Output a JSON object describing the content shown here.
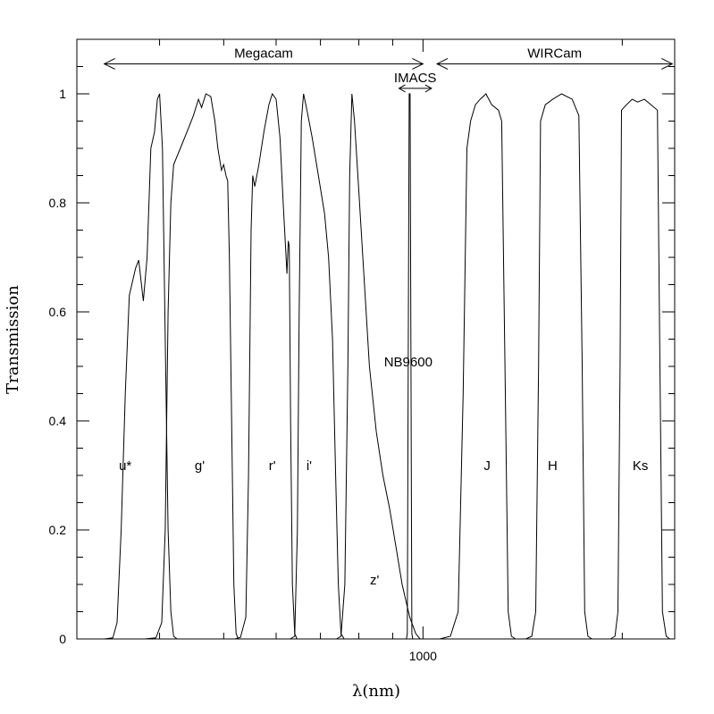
{
  "chart_data": {
    "type": "line",
    "xlabel": "λ(nm)",
    "ylabel": "Transmission",
    "xscale": "log",
    "xlim": [
      300,
      2400
    ],
    "ylim": [
      0,
      1.1
    ],
    "xticks": [
      {
        "value": 1000,
        "label": "1000"
      }
    ],
    "yticks": [
      {
        "value": 0,
        "label": "0"
      },
      {
        "value": 0.2,
        "label": "0.2"
      },
      {
        "value": 0.4,
        "label": "0.4"
      },
      {
        "value": 0.6,
        "label": "0.6"
      },
      {
        "value": 0.8,
        "label": "0.8"
      },
      {
        "value": 1,
        "label": "1"
      }
    ],
    "grid": false,
    "instruments": [
      {
        "name": "Megacam",
        "x_range": [
          330,
          1000
        ],
        "y": 1.055
      },
      {
        "name": "IMACS",
        "x_range": [
          920,
          1030
        ],
        "y": 1.01
      },
      {
        "name": "WIRCam",
        "x_range": [
          1050,
          2380
        ],
        "y": 1.055
      }
    ],
    "series": [
      {
        "name": "u*",
        "label_at": [
          355,
          0.31
        ],
        "points": [
          [
            330,
            0
          ],
          [
            340,
            0.002
          ],
          [
            345,
            0.03
          ],
          [
            350,
            0.2
          ],
          [
            355,
            0.45
          ],
          [
            360,
            0.63
          ],
          [
            368,
            0.68
          ],
          [
            372,
            0.695
          ],
          [
            378,
            0.62
          ],
          [
            383,
            0.7
          ],
          [
            388,
            0.9
          ],
          [
            393,
            0.93
          ],
          [
            397,
            0.99
          ],
          [
            400,
            1.0
          ],
          [
            404,
            0.9
          ],
          [
            408,
            0.55
          ],
          [
            412,
            0.2
          ],
          [
            416,
            0.05
          ],
          [
            420,
            0.005
          ],
          [
            425,
            0
          ]
        ]
      },
      {
        "name": "g'",
        "label_at": [
          460,
          0.31
        ],
        "points": [
          [
            380,
            0
          ],
          [
            395,
            0.002
          ],
          [
            403,
            0.03
          ],
          [
            408,
            0.2
          ],
          [
            412,
            0.6
          ],
          [
            416,
            0.8
          ],
          [
            420,
            0.87
          ],
          [
            430,
            0.9
          ],
          [
            440,
            0.93
          ],
          [
            450,
            0.96
          ],
          [
            458,
            0.99
          ],
          [
            463,
            0.975
          ],
          [
            470,
            1.0
          ],
          [
            478,
            0.995
          ],
          [
            485,
            0.95
          ],
          [
            490,
            0.9
          ],
          [
            496,
            0.86
          ],
          [
            500,
            0.87
          ],
          [
            504,
            0.85
          ],
          [
            507,
            0.84
          ],
          [
            510,
            0.7
          ],
          [
            514,
            0.4
          ],
          [
            518,
            0.1
          ],
          [
            522,
            0.01
          ],
          [
            526,
            0
          ]
        ]
      },
      {
        "name": "r'",
        "label_at": [
          592,
          0.31
        ],
        "points": [
          [
            520,
            0
          ],
          [
            530,
            0.003
          ],
          [
            540,
            0.04
          ],
          [
            545,
            0.3
          ],
          [
            550,
            0.75
          ],
          [
            553,
            0.85
          ],
          [
            557,
            0.83
          ],
          [
            565,
            0.87
          ],
          [
            575,
            0.93
          ],
          [
            585,
            0.98
          ],
          [
            592,
            1.0
          ],
          [
            600,
            0.99
          ],
          [
            608,
            0.92
          ],
          [
            615,
            0.8
          ],
          [
            620,
            0.72
          ],
          [
            623,
            0.67
          ],
          [
            626,
            0.73
          ],
          [
            628,
            0.72
          ],
          [
            631,
            0.4
          ],
          [
            635,
            0.1
          ],
          [
            640,
            0.01
          ],
          [
            645,
            0
          ]
        ]
      },
      {
        "name": "i'",
        "label_at": [
          673,
          0.31
        ],
        "points": [
          [
            630,
            0
          ],
          [
            640,
            0.005
          ],
          [
            646,
            0.2
          ],
          [
            650,
            0.6
          ],
          [
            655,
            0.95
          ],
          [
            660,
            1.0
          ],
          [
            668,
            0.97
          ],
          [
            680,
            0.92
          ],
          [
            695,
            0.85
          ],
          [
            710,
            0.78
          ],
          [
            720,
            0.7
          ],
          [
            730,
            0.55
          ],
          [
            738,
            0.3
          ],
          [
            745,
            0.1
          ],
          [
            752,
            0.01
          ],
          [
            760,
            0
          ]
        ]
      },
      {
        "name": "z'",
        "label_at": [
          845,
          0.1
        ],
        "points": [
          [
            740,
            0
          ],
          [
            752,
            0.005
          ],
          [
            762,
            0.1
          ],
          [
            770,
            0.5
          ],
          [
            775,
            0.85
          ],
          [
            781,
            1.0
          ],
          [
            788,
            0.95
          ],
          [
            800,
            0.82
          ],
          [
            815,
            0.66
          ],
          [
            830,
            0.5
          ],
          [
            850,
            0.38
          ],
          [
            870,
            0.3
          ],
          [
            890,
            0.24
          ],
          [
            910,
            0.17
          ],
          [
            930,
            0.1
          ],
          [
            955,
            0.04
          ],
          [
            975,
            0.01
          ],
          [
            990,
            0
          ]
        ]
      },
      {
        "name": "NB9600",
        "label_at": [
          950,
          0.5
        ],
        "points": [
          [
            944,
            0
          ],
          [
            947,
            0.01
          ],
          [
            950,
            0.5
          ],
          [
            953,
            1.0
          ],
          [
            956,
            1.0
          ],
          [
            959,
            0.5
          ],
          [
            962,
            0.01
          ],
          [
            965,
            0
          ]
        ]
      },
      {
        "name": "J",
        "label_at": [
          1250,
          0.31
        ],
        "points": [
          [
            1060,
            0
          ],
          [
            1100,
            0.005
          ],
          [
            1130,
            0.05
          ],
          [
            1150,
            0.45
          ],
          [
            1165,
            0.9
          ],
          [
            1180,
            0.95
          ],
          [
            1200,
            0.98
          ],
          [
            1220,
            0.99
          ],
          [
            1245,
            1.0
          ],
          [
            1270,
            0.98
          ],
          [
            1300,
            0.97
          ],
          [
            1315,
            0.95
          ],
          [
            1330,
            0.5
          ],
          [
            1345,
            0.05
          ],
          [
            1360,
            0.005
          ],
          [
            1380,
            0
          ]
        ]
      },
      {
        "name": "H",
        "label_at": [
          1570,
          0.31
        ],
        "points": [
          [
            1430,
            0
          ],
          [
            1460,
            0.005
          ],
          [
            1480,
            0.05
          ],
          [
            1495,
            0.5
          ],
          [
            1505,
            0.95
          ],
          [
            1530,
            0.98
          ],
          [
            1570,
            0.99
          ],
          [
            1620,
            1.0
          ],
          [
            1680,
            0.99
          ],
          [
            1720,
            0.96
          ],
          [
            1740,
            0.5
          ],
          [
            1755,
            0.05
          ],
          [
            1775,
            0.005
          ],
          [
            1800,
            0
          ]
        ]
      },
      {
        "name": "Ks",
        "label_at": [
          2130,
          0.31
        ],
        "points": [
          [
            1920,
            0
          ],
          [
            1950,
            0.005
          ],
          [
            1970,
            0.05
          ],
          [
            1985,
            0.5
          ],
          [
            1995,
            0.97
          ],
          [
            2030,
            0.98
          ],
          [
            2070,
            0.99
          ],
          [
            2110,
            0.985
          ],
          [
            2160,
            0.99
          ],
          [
            2210,
            0.98
          ],
          [
            2260,
            0.97
          ],
          [
            2280,
            0.5
          ],
          [
            2300,
            0.05
          ],
          [
            2330,
            0.005
          ],
          [
            2360,
            0
          ]
        ]
      }
    ]
  }
}
